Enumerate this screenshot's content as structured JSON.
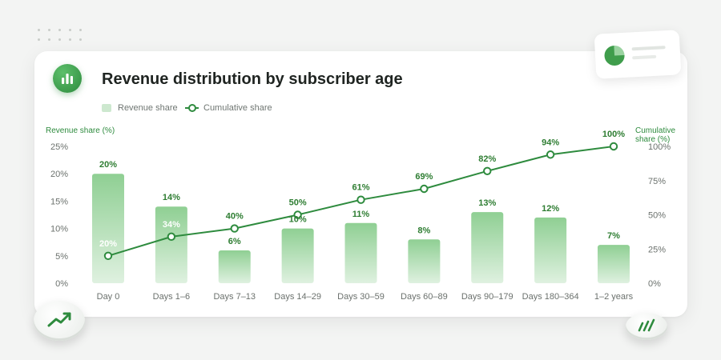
{
  "title": "Revenue distribution by subscriber age",
  "colors": {
    "accent": "#2e8b3e",
    "bar_top": "#8fcf93",
    "bar_bottom": "#dff1e0",
    "label": "#2e7d32"
  },
  "icons": {
    "title": "bar-chart-icon",
    "float_card": "pie-chart-icon",
    "coin_left": "trend-up-icon",
    "coin_right": "bars-icon"
  },
  "chart_data": {
    "type": "bar",
    "title": "Revenue distribution by subscriber age",
    "categories": [
      "Day 0",
      "Days 1–6",
      "Days 7–13",
      "Days 14–29",
      "Days 30–59",
      "Days 60–89",
      "Days 90–179",
      "Days 180–364",
      "1–2 years"
    ],
    "series": [
      {
        "name": "Revenue share",
        "type": "bar",
        "axis": "left",
        "values": [
          20,
          14,
          6,
          10,
          11,
          8,
          13,
          12,
          7
        ],
        "labels": [
          "20%",
          "14%",
          "6%",
          "10%",
          "11%",
          "8%",
          "13%",
          "12%",
          "7%"
        ]
      },
      {
        "name": "Cumulative share",
        "type": "line",
        "axis": "right",
        "values": [
          20,
          34,
          40,
          50,
          61,
          69,
          82,
          94,
          100
        ],
        "labels": [
          "20%",
          "34%",
          "40%",
          "50%",
          "61%",
          "69%",
          "82%",
          "94%",
          "100%"
        ]
      }
    ],
    "ylabel": "Revenue share (%)",
    "y2label_lines": [
      "Cumulative",
      "share (%)"
    ],
    "ylim": [
      0,
      25
    ],
    "y2lim": [
      0,
      100
    ],
    "yticks": [
      "0%",
      "5%",
      "10%",
      "15%",
      "20%",
      "25%"
    ],
    "y2ticks": [
      "0%",
      "25%",
      "50%",
      "75%",
      "100%"
    ],
    "legend": "top-left",
    "grid": false
  }
}
